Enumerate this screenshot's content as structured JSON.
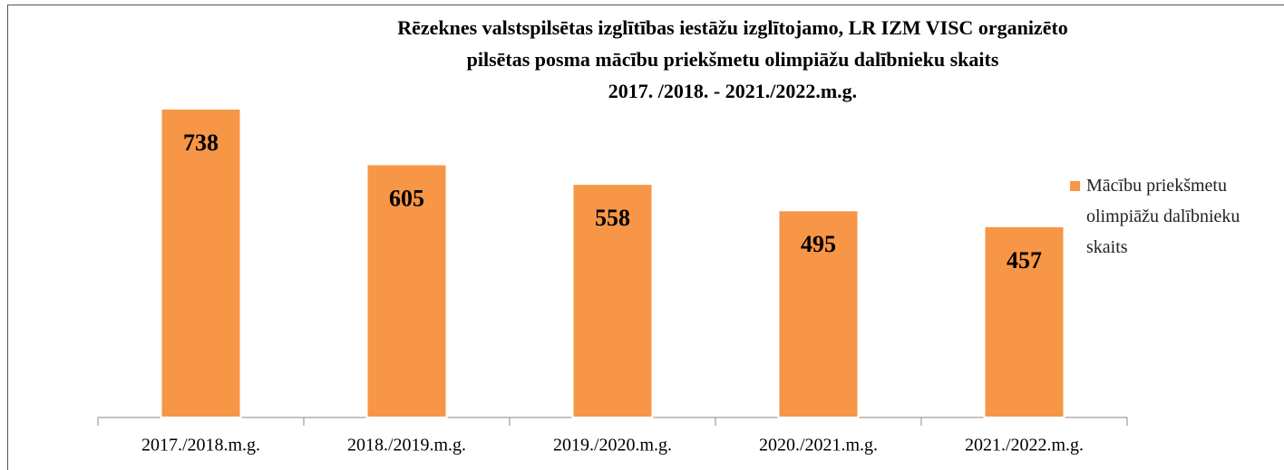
{
  "chart_data": {
    "type": "bar",
    "title": [
      "Rēzeknes valstspilsētas izglītības iestāžu izglītojamo, LR IZM VISC organizēto",
      "pilsētas posma mācību priekšmetu olimpiāžu dalībnieku skaits",
      "2017. /2018. - 2021./2022.m.g."
    ],
    "categories": [
      "2017./2018.m.g.",
      "2018./2019.m.g.",
      "2019./2020.m.g.",
      "2020./2021.m.g.",
      "2021./2022.m.g."
    ],
    "series": [
      {
        "name": "Mācību priekšmetu olimpiāžu dalībnieku skaits",
        "color": "#f79646",
        "values": [
          738,
          605,
          558,
          495,
          457
        ]
      }
    ],
    "legend": "right"
  }
}
